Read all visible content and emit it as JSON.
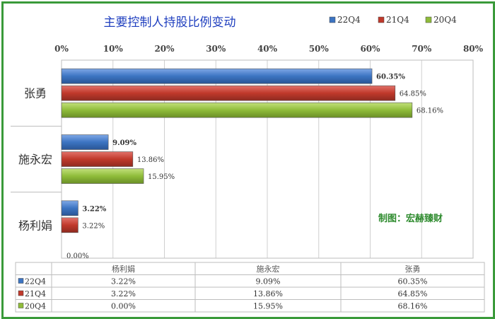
{
  "chart_data": {
    "type": "bar",
    "orientation": "horizontal",
    "title": "主要控制人持股比例变动",
    "categories": [
      "杨利娟",
      "施永宏",
      "张勇"
    ],
    "series": [
      {
        "name": "22Q4",
        "color": "#3c74c2",
        "values": [
          3.22,
          9.09,
          60.35
        ]
      },
      {
        "name": "21Q4",
        "color": "#c0392b",
        "values": [
          3.22,
          13.86,
          64.85
        ]
      },
      {
        "name": "20Q4",
        "color": "#8fbc3a",
        "values": [
          0.0,
          15.95,
          68.16
        ]
      }
    ],
    "value_labels": {
      "22Q4": [
        "3.22%",
        "9.09%",
        "60.35%"
      ],
      "21Q4": [
        "3.22%",
        "13.86%",
        "64.85%"
      ],
      "20Q4": [
        "0.00%",
        "15.95%",
        "68.16%"
      ]
    },
    "xlim": [
      0,
      80
    ],
    "xticks": [
      0,
      10,
      20,
      30,
      40,
      50,
      60,
      70,
      80
    ],
    "xtick_labels": [
      "0%",
      "10%",
      "20%",
      "30%",
      "40%",
      "50%",
      "60%",
      "70%",
      "80%"
    ],
    "xaxis_position": "top",
    "grid": true,
    "legend": "top-right",
    "annotation": "制图：宏赫臻财",
    "data_table": {
      "columns": [
        "杨利娟",
        "施永宏",
        "张勇"
      ],
      "rows": [
        {
          "series": "22Q4",
          "cells": [
            "3.22%",
            "9.09%",
            "60.35%"
          ]
        },
        {
          "series": "21Q4",
          "cells": [
            "3.22%",
            "13.86%",
            "64.85%"
          ]
        },
        {
          "series": "20Q4",
          "cells": [
            "0.00%",
            "15.95%",
            "68.16%"
          ]
        }
      ]
    }
  },
  "colors": {
    "border": "#3a9a3a",
    "title": "#1f3fbf",
    "annotation": "#2e8b2e"
  }
}
